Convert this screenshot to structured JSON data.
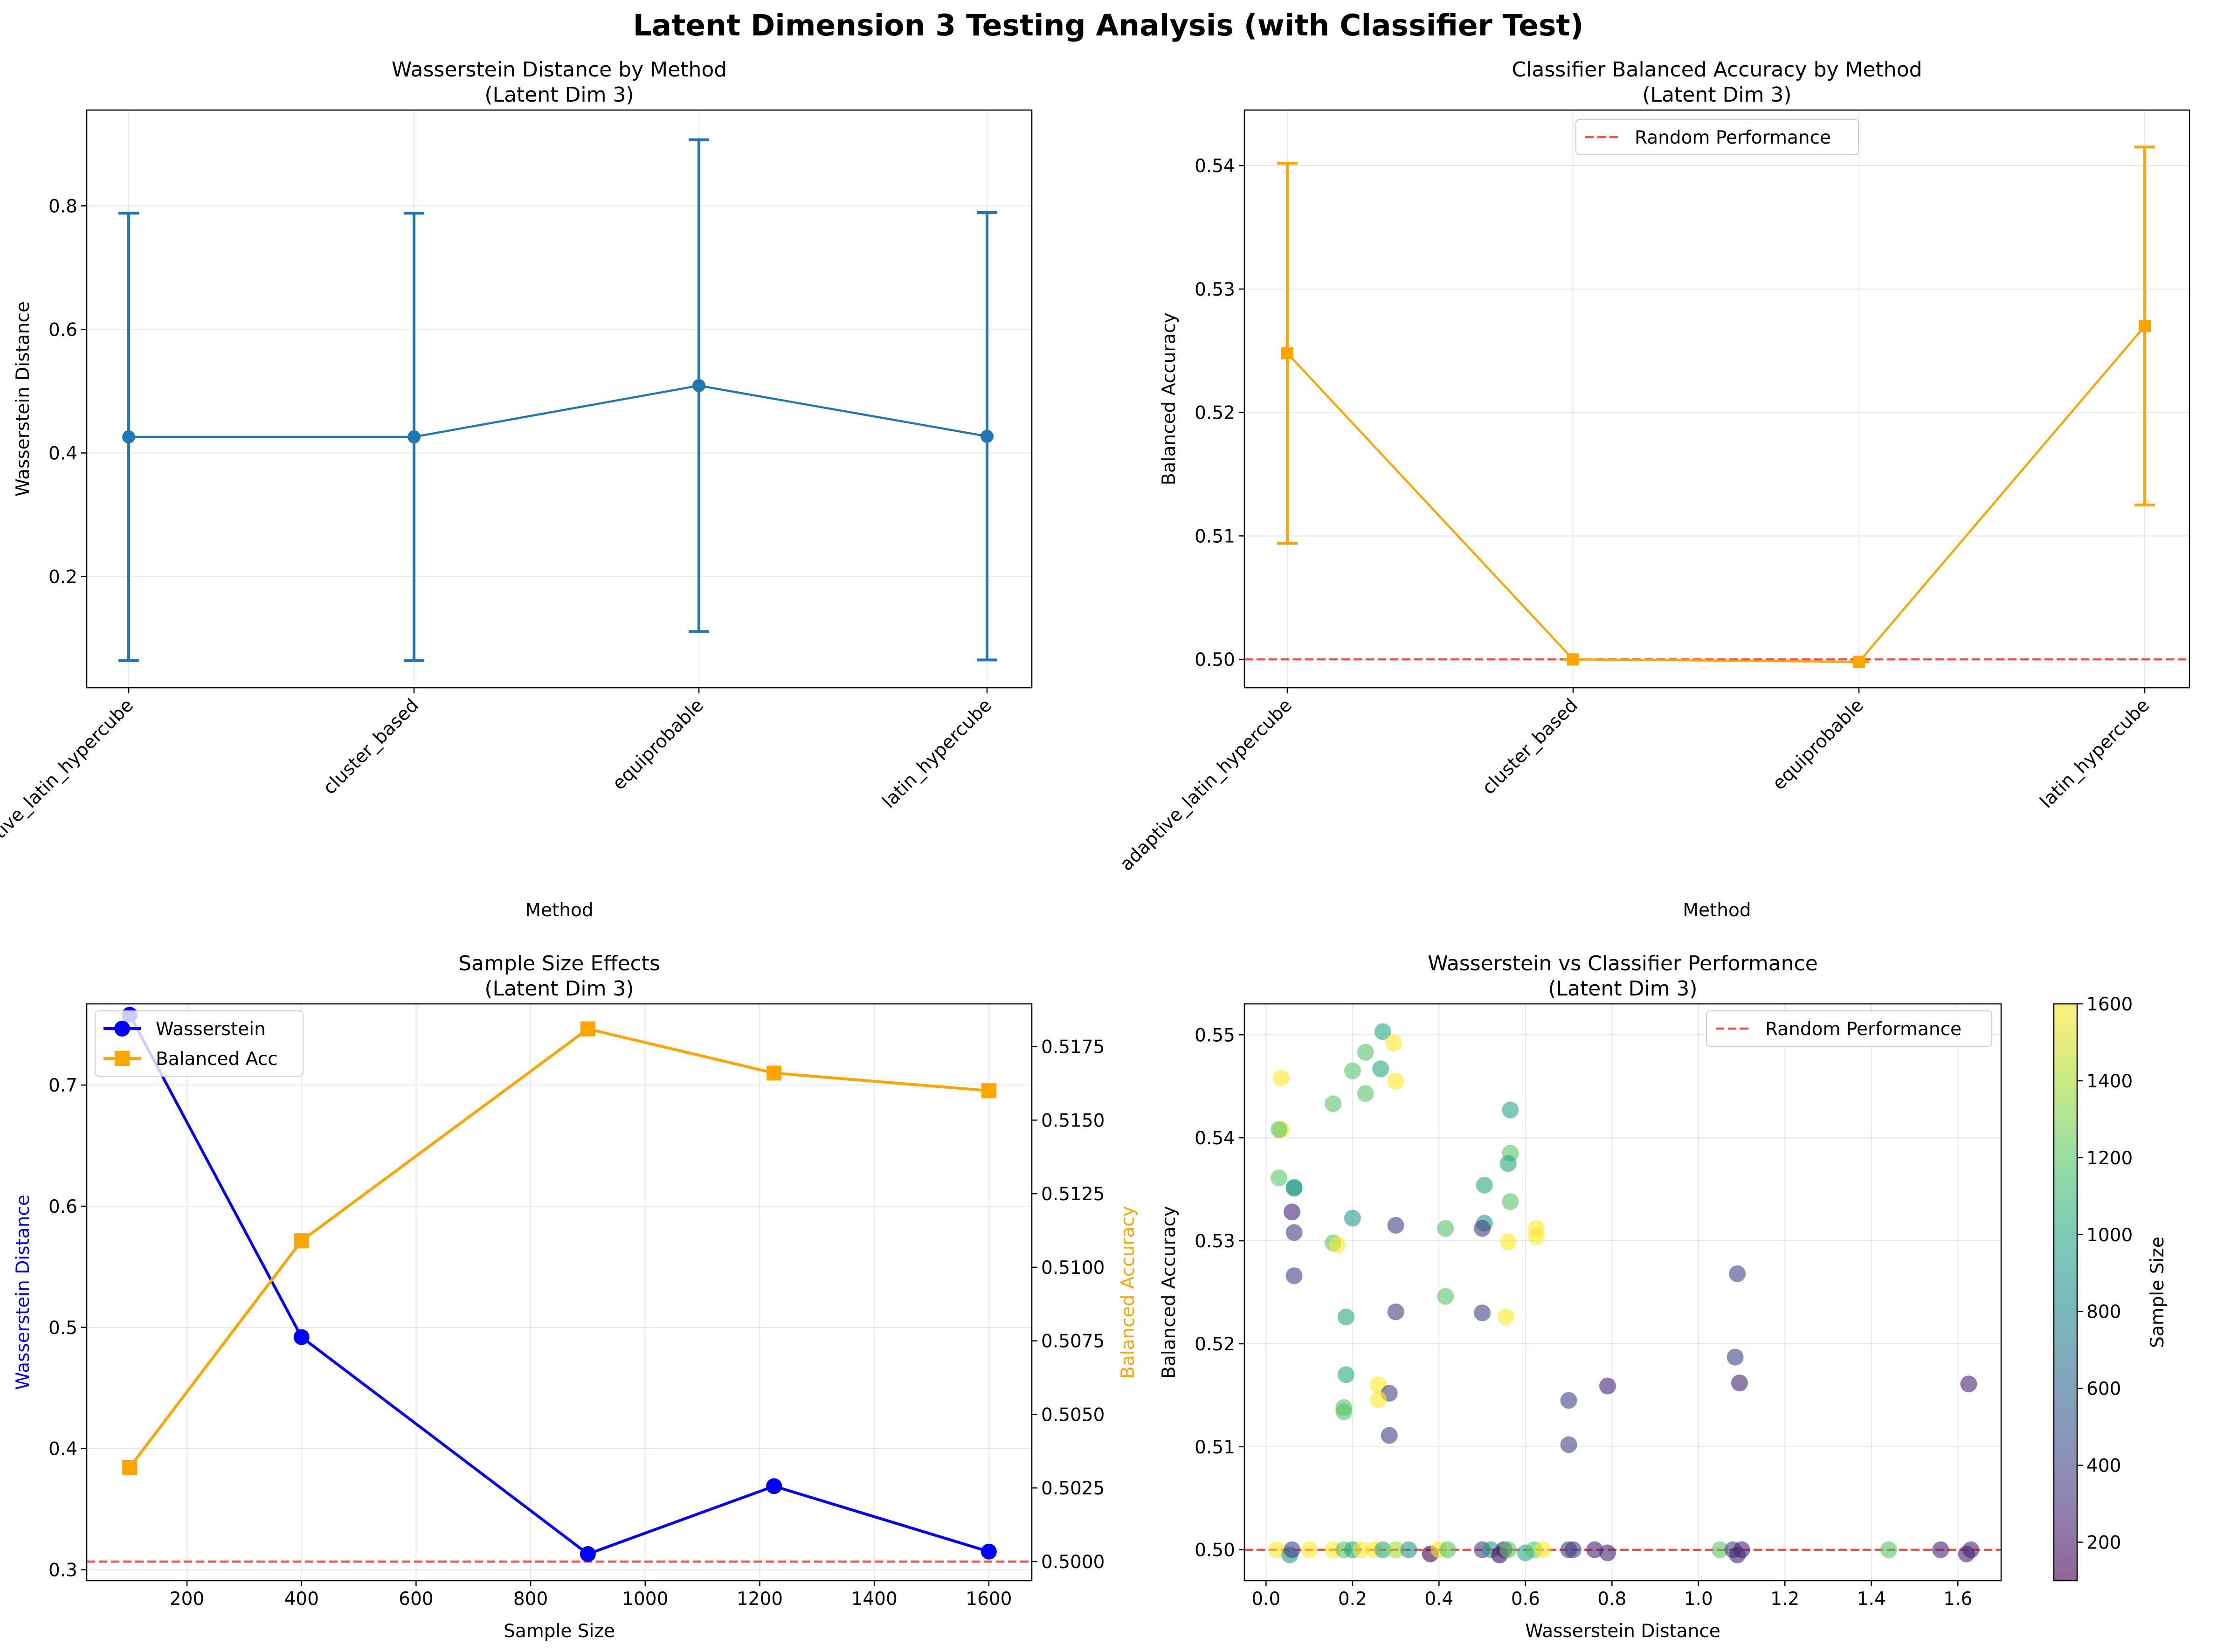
{
  "figure": {
    "title": "Latent Dimension 3 Testing Analysis (with Classifier Test)"
  },
  "colors": {
    "wasserstein_blue": "#1f77b4",
    "orange": "#ffa500",
    "bright_blue": "#0000ff",
    "reference_red": "#ff0000"
  },
  "chart_data": [
    {
      "type": "line",
      "title": "Wasserstein Distance by Method",
      "subtitle": "(Latent Dim 3)",
      "xlabel": "Method",
      "ylabel": "Wasserstein Distance",
      "categories": [
        "adaptive_latin_hypercube",
        "cluster_based",
        "equiprobable",
        "latin_hypercube"
      ],
      "series": [
        {
          "values": [
            0.426,
            0.426,
            0.509,
            0.427
          ],
          "error": [
            0.362,
            0.362,
            0.398,
            0.362
          ]
        }
      ],
      "ylim": [
        0.02,
        0.955
      ],
      "yticks": [
        0.2,
        0.4,
        0.6,
        0.8
      ],
      "tick_labels": [
        "0.2",
        "0.4",
        "0.6",
        "0.8"
      ],
      "grid": true
    },
    {
      "type": "line",
      "title": "Classifier Balanced Accuracy by Method",
      "subtitle": "(Latent Dim 3)",
      "xlabel": "Method",
      "ylabel": "Balanced Accuracy",
      "categories": [
        "adaptive_latin_hypercube",
        "cluster_based",
        "equiprobable",
        "latin_hypercube"
      ],
      "series": [
        {
          "values": [
            0.5248,
            0.5,
            0.4998,
            0.527
          ],
          "error": [
            0.0154,
            0.0,
            0.0,
            0.0145
          ]
        }
      ],
      "reference_line": {
        "value": 0.5,
        "label": "Random Performance"
      },
      "legend": "top-center",
      "ylim": [
        0.4977,
        0.5445
      ],
      "yticks": [
        0.5,
        0.51,
        0.52,
        0.53,
        0.54
      ],
      "tick_labels": [
        "0.50",
        "0.51",
        "0.52",
        "0.53",
        "0.54"
      ],
      "grid": true
    },
    {
      "type": "line",
      "title": "Sample Size Effects",
      "subtitle": "(Latent Dim 3)",
      "xlabel": "Sample Size",
      "ylabel": "Wasserstein Distance",
      "ylabel_right": "Balanced Accuracy",
      "x": [
        100,
        400,
        900,
        1225,
        1600
      ],
      "xlim": [
        25,
        1675
      ],
      "xticks": [
        200,
        400,
        600,
        800,
        1000,
        1200,
        1400,
        1600
      ],
      "series": [
        {
          "name": "Wasserstein",
          "axis": "left",
          "values": [
            0.758,
            0.492,
            0.313,
            0.369,
            0.315
          ]
        },
        {
          "name": "Balanced Acc",
          "axis": "right",
          "values": [
            0.5032,
            0.5109,
            0.5181,
            0.5166,
            0.516
          ]
        }
      ],
      "ylim_left": [
        0.291,
        0.767
      ],
      "yticks_left": [
        0.3,
        0.4,
        0.5,
        0.6,
        0.7
      ],
      "ylim_right": [
        0.49935,
        0.51895
      ],
      "yticks_right": [
        0.5,
        0.5025,
        0.505,
        0.5075,
        0.51,
        0.5125,
        0.515,
        0.5175
      ],
      "tick_labels_right": [
        "0.5000",
        "0.5025",
        "0.5050",
        "0.5075",
        "0.5100",
        "0.5125",
        "0.5150",
        "0.5175"
      ],
      "reference_line": {
        "value": 0.5,
        "axis": "right"
      },
      "legend": "top-left",
      "grid": true
    },
    {
      "type": "scatter",
      "title": "Wasserstein vs Classifier Performance",
      "subtitle": "(Latent Dim 3)",
      "xlabel": "Wasserstein Distance",
      "ylabel": "Balanced Accuracy",
      "colorbar_label": "Sample Size",
      "colorbar_range": [
        100,
        1600
      ],
      "colorbar_ticks": [
        200,
        400,
        600,
        800,
        1000,
        1200,
        1400,
        1600
      ],
      "xlim": [
        -0.05,
        1.7
      ],
      "xticks": [
        0.0,
        0.2,
        0.4,
        0.6,
        0.8,
        1.0,
        1.2,
        1.4,
        1.6
      ],
      "tick_labels_x": [
        "0.0",
        "0.2",
        "0.4",
        "0.6",
        "0.8",
        "1.0",
        "1.2",
        "1.4",
        "1.6"
      ],
      "ylim": [
        0.497,
        0.553
      ],
      "yticks": [
        0.5,
        0.51,
        0.52,
        0.53,
        0.54,
        0.55
      ],
      "tick_labels_y": [
        "0.50",
        "0.51",
        "0.52",
        "0.53",
        "0.54",
        "0.55"
      ],
      "reference_line": {
        "value": 0.5,
        "label": "Random Performance"
      },
      "legend": "top-right",
      "grid": true,
      "points": [
        [
          0.27,
          0.5503,
          1000
        ],
        [
          0.295,
          0.5492,
          1600
        ],
        [
          0.23,
          0.5483,
          1200
        ],
        [
          0.2,
          0.5465,
          1200
        ],
        [
          0.265,
          0.5467,
          1000
        ],
        [
          0.035,
          0.5458,
          1600
        ],
        [
          0.3,
          0.5455,
          1600
        ],
        [
          0.23,
          0.5443,
          1200
        ],
        [
          0.155,
          0.5433,
          1200
        ],
        [
          0.565,
          0.5427,
          1000
        ],
        [
          0.035,
          0.5408,
          1600
        ],
        [
          0.03,
          0.5408,
          1200
        ],
        [
          0.565,
          0.5385,
          1200
        ],
        [
          0.56,
          0.5375,
          1000
        ],
        [
          0.03,
          0.5361,
          1200
        ],
        [
          0.505,
          0.5354,
          1000
        ],
        [
          0.065,
          0.5352,
          1000
        ],
        [
          0.065,
          0.5351,
          900
        ],
        [
          0.565,
          0.5338,
          1200
        ],
        [
          0.06,
          0.5328,
          250
        ],
        [
          0.2,
          0.5322,
          900
        ],
        [
          0.505,
          0.5317,
          900
        ],
        [
          0.5,
          0.5312,
          400
        ],
        [
          0.3,
          0.5315,
          400
        ],
        [
          0.415,
          0.5312,
          1200
        ],
        [
          0.625,
          0.5312,
          1600
        ],
        [
          0.065,
          0.5308,
          400
        ],
        [
          0.625,
          0.5304,
          1600
        ],
        [
          0.155,
          0.5298,
          1200
        ],
        [
          0.165,
          0.5296,
          1600
        ],
        [
          0.56,
          0.5299,
          1600
        ],
        [
          0.065,
          0.5266,
          400
        ],
        [
          1.09,
          0.5268,
          400
        ],
        [
          0.415,
          0.5246,
          1200
        ],
        [
          0.3,
          0.5231,
          400
        ],
        [
          0.5,
          0.523,
          400
        ],
        [
          0.185,
          0.5226,
          1000
        ],
        [
          0.555,
          0.5226,
          1600
        ],
        [
          1.085,
          0.5187,
          400
        ],
        [
          0.185,
          0.517,
          1000
        ],
        [
          0.26,
          0.516,
          1600
        ],
        [
          0.79,
          0.5159,
          250
        ],
        [
          1.095,
          0.5162,
          250
        ],
        [
          1.625,
          0.5161,
          250
        ],
        [
          0.285,
          0.5152,
          400
        ],
        [
          0.26,
          0.5146,
          1600
        ],
        [
          0.7,
          0.5145,
          400
        ],
        [
          0.18,
          0.5138,
          1200
        ],
        [
          0.18,
          0.5134,
          1200
        ],
        [
          0.285,
          0.5111,
          400
        ],
        [
          0.7,
          0.5102,
          400
        ],
        [
          0.025,
          0.5,
          1600
        ],
        [
          0.055,
          0.4995,
          900
        ],
        [
          0.06,
          0.5,
          400
        ],
        [
          0.1,
          0.5,
          1600
        ],
        [
          0.155,
          0.5,
          1600
        ],
        [
          0.18,
          0.5,
          1200
        ],
        [
          0.2,
          0.5,
          1000
        ],
        [
          0.22,
          0.5,
          1600
        ],
        [
          0.25,
          0.5,
          1600
        ],
        [
          0.27,
          0.5,
          1000
        ],
        [
          0.3,
          0.5,
          1400
        ],
        [
          0.33,
          0.5,
          900
        ],
        [
          0.38,
          0.4996,
          100
        ],
        [
          0.4,
          0.5,
          1600
        ],
        [
          0.42,
          0.5,
          1200
        ],
        [
          0.5,
          0.5,
          400
        ],
        [
          0.52,
          0.5,
          900
        ],
        [
          0.54,
          0.4995,
          100
        ],
        [
          0.55,
          0.5,
          250
        ],
        [
          0.56,
          0.5,
          1200
        ],
        [
          0.6,
          0.4997,
          1000
        ],
        [
          0.62,
          0.5,
          1200
        ],
        [
          0.64,
          0.5,
          1600
        ],
        [
          0.7,
          0.5,
          400
        ],
        [
          0.71,
          0.5,
          400
        ],
        [
          0.76,
          0.5,
          250
        ],
        [
          0.79,
          0.4997,
          250
        ],
        [
          1.05,
          0.5,
          1200
        ],
        [
          1.08,
          0.5,
          400
        ],
        [
          1.09,
          0.4995,
          250
        ],
        [
          1.1,
          0.5,
          250
        ],
        [
          1.44,
          0.5,
          1200
        ],
        [
          1.56,
          0.5,
          250
        ],
        [
          1.62,
          0.4996,
          250
        ],
        [
          1.63,
          0.5,
          250
        ]
      ]
    }
  ]
}
